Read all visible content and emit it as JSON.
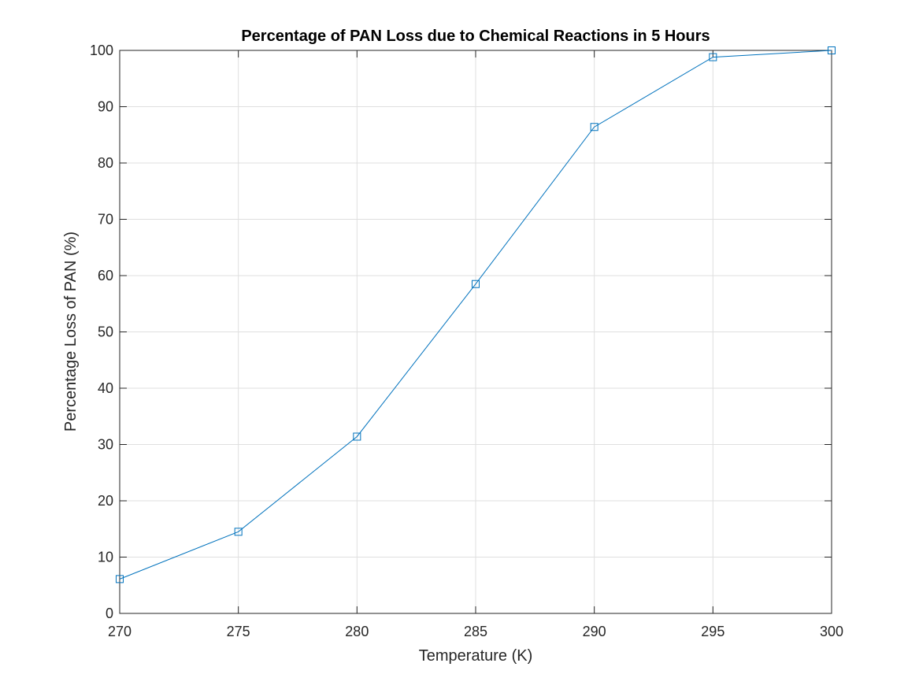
{
  "chart_data": {
    "type": "line",
    "title": "Percentage of PAN Loss due to Chemical Reactions in 5 Hours",
    "xlabel": "Temperature (K)",
    "ylabel": "Percentage Loss of PAN (%)",
    "x": [
      270,
      275,
      280,
      285,
      290,
      295,
      300
    ],
    "series": [
      {
        "values": [
          6.1,
          14.5,
          31.4,
          58.5,
          86.4,
          98.8,
          100.0
        ],
        "color": "#0072BD",
        "marker": "square"
      }
    ],
    "xlim": [
      270,
      300
    ],
    "ylim": [
      0,
      100
    ],
    "xticks": [
      "270",
      "275",
      "280",
      "285",
      "290",
      "295",
      "300"
    ],
    "yticks": [
      "0",
      "10",
      "20",
      "30",
      "40",
      "50",
      "60",
      "70",
      "80",
      "90",
      "100"
    ],
    "grid": true,
    "legend": "none"
  }
}
